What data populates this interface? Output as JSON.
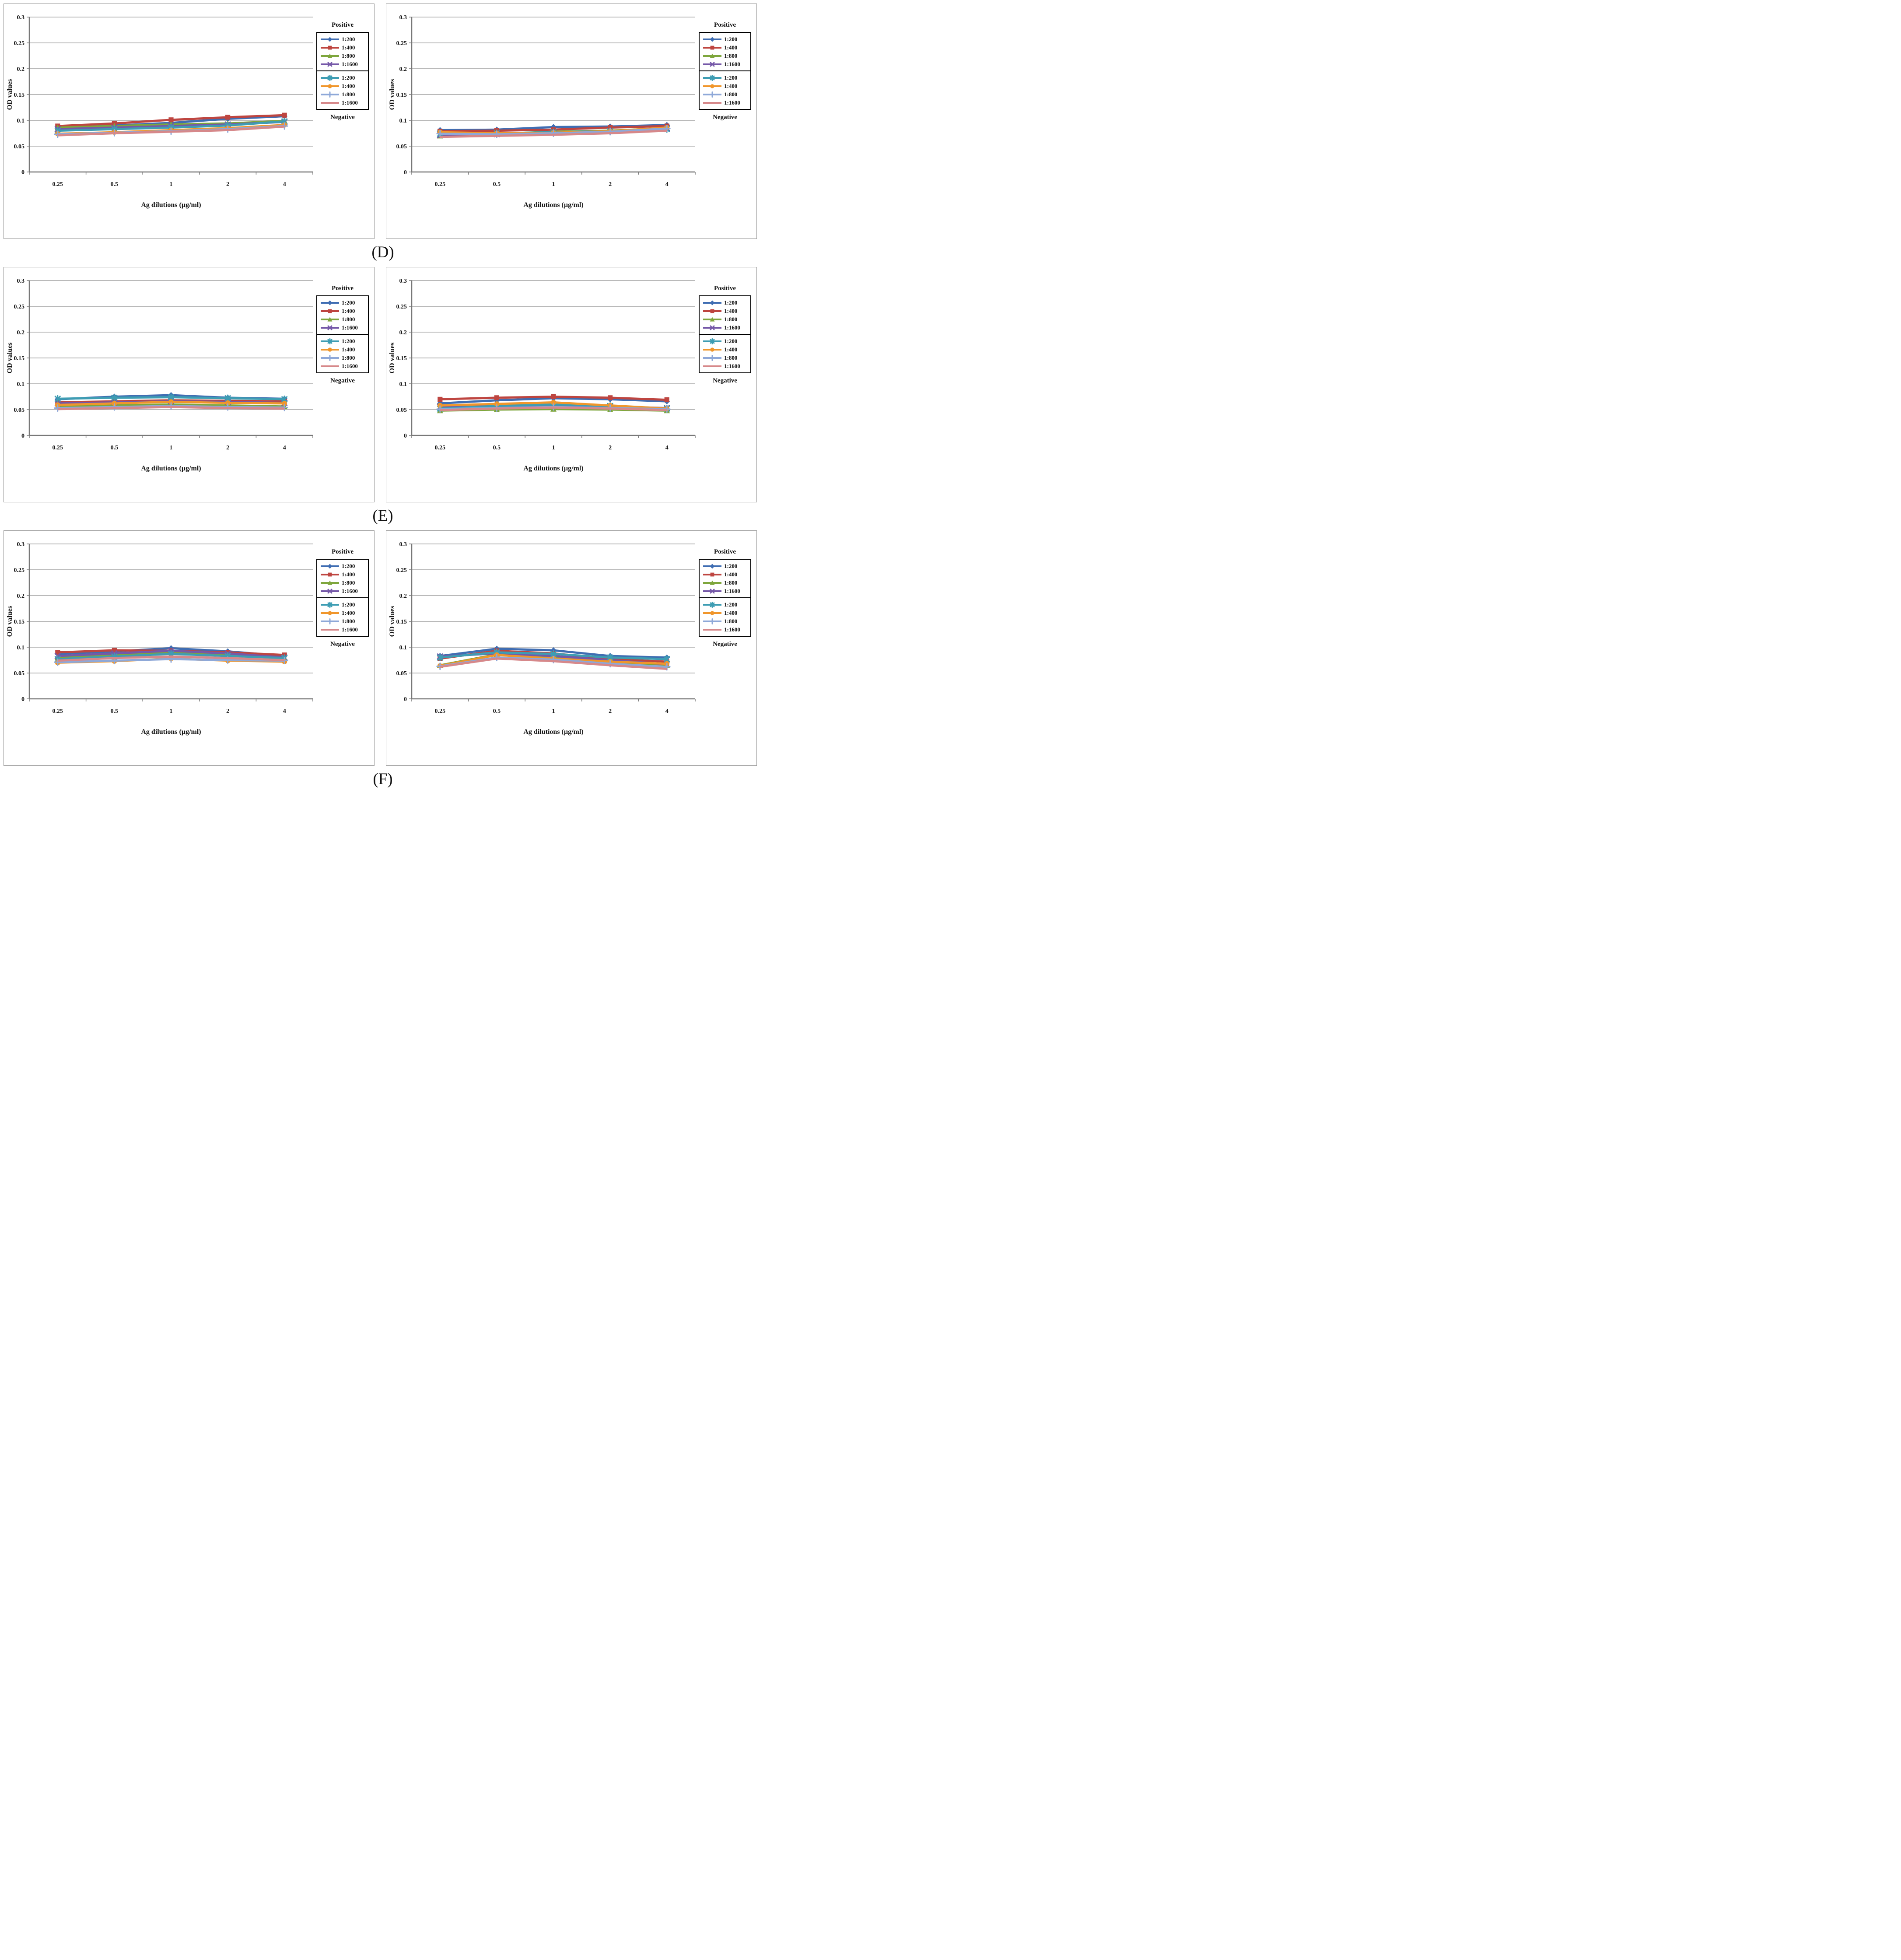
{
  "page": {
    "background": "#ffffff"
  },
  "figure": {
    "rows": [
      {
        "label": "(D)"
      },
      {
        "label": "(E)"
      },
      {
        "label": "(F)"
      }
    ]
  },
  "palette": {
    "positive_1_200": "#3F6DB2",
    "positive_1_400": "#BE4540",
    "positive_1_800": "#7EA63C",
    "positive_1_1600": "#7558A8",
    "negative_1_200": "#3E9DB3",
    "negative_1_400": "#F0962B",
    "negative_1_800": "#8EA8D8",
    "negative_1_1600": "#D6888A",
    "gridline": "#a3a3a3",
    "axis": "#787878",
    "panel_border": "#9a9a9a",
    "text": "#141414"
  },
  "chart_data": [
    {
      "position": "D-left",
      "type": "line",
      "title": "",
      "xlabel": "Ag dilutions (µg/ml)",
      "ylabel": "OD values",
      "x_categories": [
        "0.25",
        "0.5",
        "1",
        "2",
        "4"
      ],
      "y_ticks": [
        "0",
        "0.05",
        "0.1",
        "0.15",
        "0.2",
        "0.25",
        "0.3"
      ],
      "ylim": [
        0,
        0.3
      ],
      "grid": true,
      "legend_position": "right",
      "legend_groups": [
        {
          "label": "Positive"
        },
        {
          "label": "Negative"
        }
      ],
      "series": [
        {
          "group": "Positive",
          "name": "1:200",
          "color": "#3F6DB2",
          "marker": "diamond",
          "values": [
            0.085,
            0.09,
            0.095,
            0.103,
            0.108
          ]
        },
        {
          "group": "Positive",
          "name": "1:400",
          "color": "#BE4540",
          "marker": "square",
          "values": [
            0.089,
            0.094,
            0.101,
            0.106,
            0.11
          ]
        },
        {
          "group": "Positive",
          "name": "1:800",
          "color": "#7EA63C",
          "marker": "triangle",
          "values": [
            0.086,
            0.089,
            0.092,
            0.094,
            0.099
          ]
        },
        {
          "group": "Positive",
          "name": "1:1600",
          "color": "#7558A8",
          "marker": "x",
          "values": [
            0.083,
            0.086,
            0.089,
            0.092,
            0.097
          ]
        },
        {
          "group": "Negative",
          "name": "1:200",
          "color": "#3E9DB3",
          "marker": "asterisk",
          "values": [
            0.08,
            0.083,
            0.086,
            0.09,
            0.098
          ]
        },
        {
          "group": "Negative",
          "name": "1:400",
          "color": "#F0962B",
          "marker": "circle",
          "values": [
            0.074,
            0.077,
            0.081,
            0.085,
            0.091
          ]
        },
        {
          "group": "Negative",
          "name": "1:800",
          "color": "#8EA8D8",
          "marker": "plus",
          "values": [
            0.073,
            0.076,
            0.079,
            0.083,
            0.089
          ]
        },
        {
          "group": "Negative",
          "name": "1:1600",
          "color": "#D6888A",
          "marker": "none",
          "values": [
            0.071,
            0.075,
            0.078,
            0.081,
            0.088
          ]
        }
      ]
    },
    {
      "position": "D-right",
      "type": "line",
      "title": "",
      "xlabel": "Ag dilutions (µg/ml)",
      "ylabel": "OD values",
      "x_categories": [
        "0.25",
        "0.5",
        "1",
        "2",
        "4"
      ],
      "y_ticks": [
        "0",
        "0.05",
        "0.1",
        "0.15",
        "0.2",
        "0.25",
        "0.3"
      ],
      "ylim": [
        0,
        0.3
      ],
      "grid": true,
      "legend_position": "right",
      "legend_groups": [
        {
          "label": "Positive"
        },
        {
          "label": "Negative"
        }
      ],
      "series": [
        {
          "group": "Positive",
          "name": "1:200",
          "color": "#3F6DB2",
          "marker": "diamond",
          "values": [
            0.081,
            0.082,
            0.087,
            0.088,
            0.091
          ]
        },
        {
          "group": "Positive",
          "name": "1:400",
          "color": "#BE4540",
          "marker": "square",
          "values": [
            0.079,
            0.08,
            0.082,
            0.086,
            0.089
          ]
        },
        {
          "group": "Positive",
          "name": "1:800",
          "color": "#7EA63C",
          "marker": "triangle",
          "values": [
            0.07,
            0.074,
            0.078,
            0.08,
            0.085
          ]
        },
        {
          "group": "Positive",
          "name": "1:1600",
          "color": "#7558A8",
          "marker": "x",
          "values": [
            0.071,
            0.073,
            0.077,
            0.079,
            0.085
          ]
        },
        {
          "group": "Negative",
          "name": "1:200",
          "color": "#3E9DB3",
          "marker": "asterisk",
          "values": [
            0.074,
            0.075,
            0.077,
            0.079,
            0.083
          ]
        },
        {
          "group": "Negative",
          "name": "1:400",
          "color": "#F0962B",
          "marker": "circle",
          "values": [
            0.077,
            0.075,
            0.076,
            0.079,
            0.086
          ]
        },
        {
          "group": "Negative",
          "name": "1:800",
          "color": "#8EA8D8",
          "marker": "plus",
          "values": [
            0.074,
            0.073,
            0.075,
            0.078,
            0.084
          ]
        },
        {
          "group": "Negative",
          "name": "1:1600",
          "color": "#D6888A",
          "marker": "none",
          "values": [
            0.068,
            0.07,
            0.072,
            0.075,
            0.08
          ]
        }
      ]
    },
    {
      "position": "E-left",
      "type": "line",
      "title": "",
      "xlabel": "Ag dilutions (µg/ml)",
      "ylabel": "OD values",
      "x_categories": [
        "0.25",
        "0.5",
        "1",
        "2",
        "4"
      ],
      "y_ticks": [
        "0",
        "0.05",
        "0.1",
        "0.15",
        "0.2",
        "0.25",
        "0.3"
      ],
      "ylim": [
        0,
        0.3
      ],
      "grid": true,
      "legend_position": "right",
      "legend_groups": [
        {
          "label": "Positive"
        },
        {
          "label": "Negative"
        }
      ],
      "series": [
        {
          "group": "Positive",
          "name": "1:200",
          "color": "#3F6DB2",
          "marker": "diamond",
          "values": [
            0.07,
            0.075,
            0.078,
            0.073,
            0.071
          ]
        },
        {
          "group": "Positive",
          "name": "1:400",
          "color": "#BE4540",
          "marker": "square",
          "values": [
            0.064,
            0.066,
            0.068,
            0.067,
            0.066
          ]
        },
        {
          "group": "Positive",
          "name": "1:800",
          "color": "#7EA63C",
          "marker": "triangle",
          "values": [
            0.056,
            0.058,
            0.06,
            0.058,
            0.056
          ]
        },
        {
          "group": "Positive",
          "name": "1:1600",
          "color": "#7558A8",
          "marker": "x",
          "values": [
            0.062,
            0.064,
            0.066,
            0.065,
            0.063
          ]
        },
        {
          "group": "Negative",
          "name": "1:200",
          "color": "#3E9DB3",
          "marker": "asterisk",
          "values": [
            0.071,
            0.073,
            0.074,
            0.072,
            0.07
          ]
        },
        {
          "group": "Negative",
          "name": "1:400",
          "color": "#F0962B",
          "marker": "circle",
          "values": [
            0.059,
            0.062,
            0.065,
            0.063,
            0.062
          ]
        },
        {
          "group": "Negative",
          "name": "1:800",
          "color": "#8EA8D8",
          "marker": "plus",
          "values": [
            0.053,
            0.055,
            0.057,
            0.055,
            0.054
          ]
        },
        {
          "group": "Negative",
          "name": "1:1600",
          "color": "#D6888A",
          "marker": "none",
          "values": [
            0.051,
            0.053,
            0.055,
            0.053,
            0.052
          ]
        }
      ]
    },
    {
      "position": "E-right",
      "type": "line",
      "title": "",
      "xlabel": "Ag dilutions (µg/ml)",
      "ylabel": "OD values",
      "x_categories": [
        "0.25",
        "0.5",
        "1",
        "2",
        "4"
      ],
      "y_ticks": [
        "0",
        "0.05",
        "0.1",
        "0.15",
        "0.2",
        "0.25",
        "0.3"
      ],
      "ylim": [
        0,
        0.3
      ],
      "grid": true,
      "legend_position": "right",
      "legend_groups": [
        {
          "label": "Positive"
        },
        {
          "label": "Negative"
        }
      ],
      "series": [
        {
          "group": "Positive",
          "name": "1:200",
          "color": "#3F6DB2",
          "marker": "diamond",
          "values": [
            0.062,
            0.068,
            0.072,
            0.07,
            0.066
          ]
        },
        {
          "group": "Positive",
          "name": "1:400",
          "color": "#BE4540",
          "marker": "square",
          "values": [
            0.07,
            0.073,
            0.075,
            0.073,
            0.069
          ]
        },
        {
          "group": "Positive",
          "name": "1:800",
          "color": "#7EA63C",
          "marker": "triangle",
          "values": [
            0.048,
            0.05,
            0.051,
            0.05,
            0.048
          ]
        },
        {
          "group": "Positive",
          "name": "1:1600",
          "color": "#7558A8",
          "marker": "x",
          "values": [
            0.055,
            0.057,
            0.058,
            0.056,
            0.053
          ]
        },
        {
          "group": "Negative",
          "name": "1:200",
          "color": "#3E9DB3",
          "marker": "asterisk",
          "values": [
            0.052,
            0.057,
            0.06,
            0.057,
            0.052
          ]
        },
        {
          "group": "Negative",
          "name": "1:400",
          "color": "#F0962B",
          "marker": "circle",
          "values": [
            0.058,
            0.061,
            0.064,
            0.058,
            0.052
          ]
        },
        {
          "group": "Negative",
          "name": "1:800",
          "color": "#8EA8D8",
          "marker": "plus",
          "values": [
            0.051,
            0.053,
            0.055,
            0.053,
            0.051
          ]
        },
        {
          "group": "Negative",
          "name": "1:1600",
          "color": "#D6888A",
          "marker": "none",
          "values": [
            0.049,
            0.052,
            0.054,
            0.052,
            0.049
          ]
        }
      ]
    },
    {
      "position": "F-left",
      "type": "line",
      "title": "",
      "xlabel": "Ag dilutions (µg/ml)",
      "ylabel": "OD values",
      "x_categories": [
        "0.25",
        "0.5",
        "1",
        "2",
        "4"
      ],
      "y_ticks": [
        "0",
        "0.05",
        "0.1",
        "0.15",
        "0.2",
        "0.25",
        "0.3"
      ],
      "ylim": [
        0,
        0.3
      ],
      "grid": true,
      "legend_position": "right",
      "legend_groups": [
        {
          "label": "Positive"
        },
        {
          "label": "Negative"
        }
      ],
      "series": [
        {
          "group": "Positive",
          "name": "1:200",
          "color": "#3F6DB2",
          "marker": "diamond",
          "values": [
            0.087,
            0.092,
            0.098,
            0.092,
            0.083
          ]
        },
        {
          "group": "Positive",
          "name": "1:400",
          "color": "#BE4540",
          "marker": "square",
          "values": [
            0.09,
            0.094,
            0.093,
            0.09,
            0.085
          ]
        },
        {
          "group": "Positive",
          "name": "1:800",
          "color": "#7EA63C",
          "marker": "triangle",
          "values": [
            0.08,
            0.085,
            0.09,
            0.085,
            0.079
          ]
        },
        {
          "group": "Positive",
          "name": "1:1600",
          "color": "#7558A8",
          "marker": "x",
          "values": [
            0.083,
            0.088,
            0.093,
            0.088,
            0.08
          ]
        },
        {
          "group": "Negative",
          "name": "1:200",
          "color": "#3E9DB3",
          "marker": "asterisk",
          "values": [
            0.077,
            0.082,
            0.087,
            0.083,
            0.079
          ]
        },
        {
          "group": "Negative",
          "name": "1:400",
          "color": "#F0962B",
          "marker": "circle",
          "values": [
            0.07,
            0.073,
            0.078,
            0.074,
            0.072
          ]
        },
        {
          "group": "Negative",
          "name": "1:800",
          "color": "#8EA8D8",
          "marker": "plus",
          "values": [
            0.071,
            0.074,
            0.077,
            0.075,
            0.074
          ]
        },
        {
          "group": "Negative",
          "name": "1:1600",
          "color": "#D6888A",
          "marker": "none",
          "values": [
            0.074,
            0.079,
            0.082,
            0.079,
            0.075
          ]
        }
      ]
    },
    {
      "position": "F-right",
      "type": "line",
      "title": "",
      "xlabel": "Ag dilutions (µg/ml)",
      "ylabel": "OD values",
      "x_categories": [
        "0.25",
        "0.5",
        "1",
        "2",
        "4"
      ],
      "y_ticks": [
        "0",
        "0.05",
        "0.1",
        "0.15",
        "0.2",
        "0.25",
        "0.3"
      ],
      "ylim": [
        0,
        0.3
      ],
      "grid": true,
      "legend_position": "right",
      "legend_groups": [
        {
          "label": "Positive"
        },
        {
          "label": "Negative"
        }
      ],
      "series": [
        {
          "group": "Positive",
          "name": "1:200",
          "color": "#3F6DB2",
          "marker": "diamond",
          "values": [
            0.083,
            0.097,
            0.094,
            0.083,
            0.08
          ]
        },
        {
          "group": "Positive",
          "name": "1:400",
          "color": "#BE4540",
          "marker": "square",
          "values": [
            0.078,
            0.093,
            0.088,
            0.077,
            0.072
          ]
        },
        {
          "group": "Positive",
          "name": "1:800",
          "color": "#7EA63C",
          "marker": "triangle",
          "values": [
            0.065,
            0.086,
            0.082,
            0.07,
            0.065
          ]
        },
        {
          "group": "Positive",
          "name": "1:1600",
          "color": "#7558A8",
          "marker": "x",
          "values": [
            0.082,
            0.088,
            0.083,
            0.075,
            0.067
          ]
        },
        {
          "group": "Negative",
          "name": "1:200",
          "color": "#3E9DB3",
          "marker": "asterisk",
          "values": [
            0.08,
            0.09,
            0.087,
            0.08,
            0.077
          ]
        },
        {
          "group": "Negative",
          "name": "1:400",
          "color": "#F0962B",
          "marker": "circle",
          "values": [
            0.064,
            0.085,
            0.078,
            0.072,
            0.068
          ]
        },
        {
          "group": "Negative",
          "name": "1:800",
          "color": "#8EA8D8",
          "marker": "plus",
          "values": [
            0.063,
            0.08,
            0.076,
            0.068,
            0.062
          ]
        },
        {
          "group": "Negative",
          "name": "1:1600",
          "color": "#D6888A",
          "marker": "none",
          "values": [
            0.062,
            0.078,
            0.073,
            0.065,
            0.058
          ]
        }
      ]
    }
  ]
}
